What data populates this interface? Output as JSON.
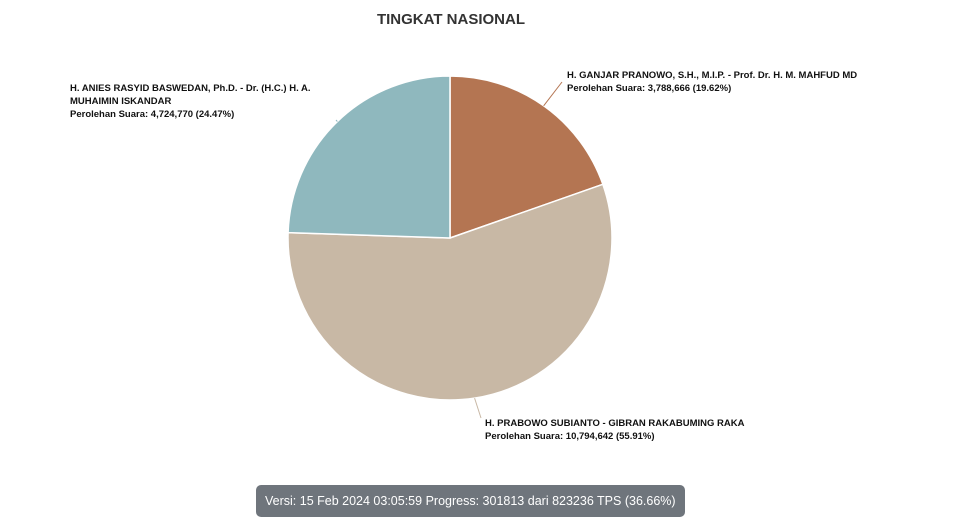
{
  "chart_data": {
    "type": "pie",
    "title": "TINGKAT NASIONAL",
    "value_prefix": "Perolehan Suara: ",
    "slices": [
      {
        "id": "ganjar",
        "name": "H. GANJAR PRANOWO, S.H., M.I.P. - Prof. Dr. H. M. MAHFUD MD",
        "value": 3788666,
        "value_text": "3,788,666 (19.62%)",
        "percent": 19.62,
        "color": "#b47552"
      },
      {
        "id": "prabowo",
        "name": "H. PRABOWO SUBIANTO - GIBRAN RAKABUMING RAKA",
        "value": 10794642,
        "value_text": "10,794,642 (55.91%)",
        "percent": 55.91,
        "color": "#c8b8a5"
      },
      {
        "id": "anies",
        "name": "H. ANIES RASYID BASWEDAN, Ph.D. - Dr. (H.C.) H. A. MUHAIMIN ISKANDAR",
        "value": 4724770,
        "value_text": "4,724,770 (24.47%)",
        "percent": 24.47,
        "color": "#8fb8be"
      }
    ]
  },
  "footer": {
    "version_label": "Versi:",
    "version_date": "15 Feb 2024 03:05:59",
    "progress_label": "Progress:",
    "progress_done": "301813",
    "progress_sep": "dari",
    "progress_total": "823236",
    "progress_unit": "TPS",
    "progress_percent": "(36.66%)"
  }
}
